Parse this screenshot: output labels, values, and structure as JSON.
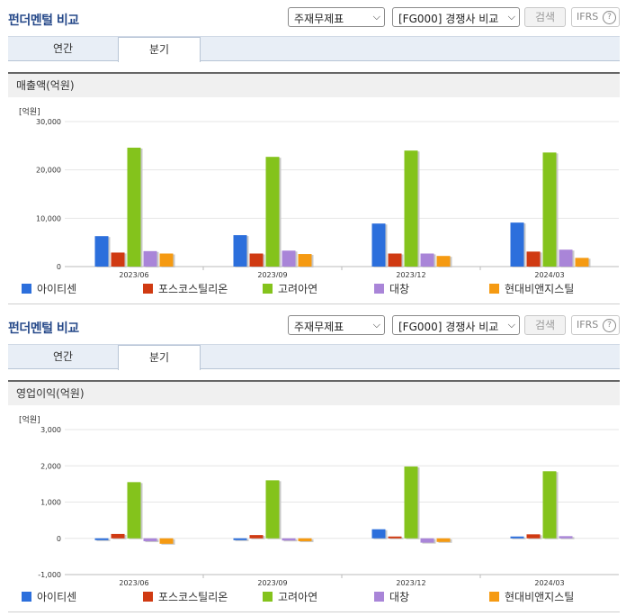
{
  "title": "펀더멘털 비교",
  "controls": {
    "statement_select": "주재무제표",
    "peer_select": "[FG000] 경쟁사 비교",
    "search_label": "검색",
    "ifrs_label": "IFRS",
    "help_glyph": "?"
  },
  "tabs": [
    {
      "label": "연간",
      "active": false
    },
    {
      "label": "분기",
      "active": true
    }
  ],
  "legend": [
    {
      "name": "아이티센",
      "color": "#2c6fdc"
    },
    {
      "name": "포스코스틸리온",
      "color": "#d03a12"
    },
    {
      "name": "고려아연",
      "color": "#84c31c"
    },
    {
      "name": "대창",
      "color": "#a985d8"
    },
    {
      "name": "현대비앤지스틸",
      "color": "#f59a12"
    }
  ],
  "chart_data": [
    {
      "type": "bar",
      "section_title": "매출액(억원)",
      "unit": "[억원]",
      "categories": [
        "2023/06",
        "2023/09",
        "2023/12",
        "2024/03"
      ],
      "ylim": [
        0,
        30000
      ],
      "yticks": [
        0,
        10000,
        20000,
        30000
      ],
      "ytick_labels": [
        "0",
        "10,000",
        "20,000",
        "30,000"
      ],
      "series": [
        {
          "name": "아이티센",
          "values": [
            6300,
            6500,
            8900,
            9100
          ]
        },
        {
          "name": "포스코스틸리온",
          "values": [
            2900,
            2700,
            2700,
            3100
          ]
        },
        {
          "name": "고려아연",
          "values": [
            24600,
            22700,
            24000,
            23600
          ]
        },
        {
          "name": "대창",
          "values": [
            3200,
            3300,
            2700,
            3500
          ]
        },
        {
          "name": "현대비앤지스틸",
          "values": [
            2700,
            2600,
            2200,
            1800
          ]
        }
      ]
    },
    {
      "type": "bar",
      "section_title": "영업이익(억원)",
      "unit": "[억원]",
      "categories": [
        "2023/06",
        "2023/09",
        "2023/12",
        "2024/03"
      ],
      "ylim": [
        -1000,
        3000
      ],
      "yticks": [
        -1000,
        0,
        1000,
        2000,
        3000
      ],
      "ytick_labels": [
        "-1,000",
        "0",
        "1,000",
        "2,000",
        "3,000"
      ],
      "series": [
        {
          "name": "아이티센",
          "values": [
            -50,
            -40,
            250,
            50
          ]
        },
        {
          "name": "포스코스틸리온",
          "values": [
            120,
            90,
            50,
            110
          ]
        },
        {
          "name": "고려아연",
          "values": [
            1550,
            1600,
            1980,
            1850
          ]
        },
        {
          "name": "대창",
          "values": [
            -80,
            -60,
            -120,
            60
          ]
        },
        {
          "name": "현대비앤지스틸",
          "values": [
            -150,
            -80,
            -100,
            0
          ]
        }
      ]
    }
  ]
}
